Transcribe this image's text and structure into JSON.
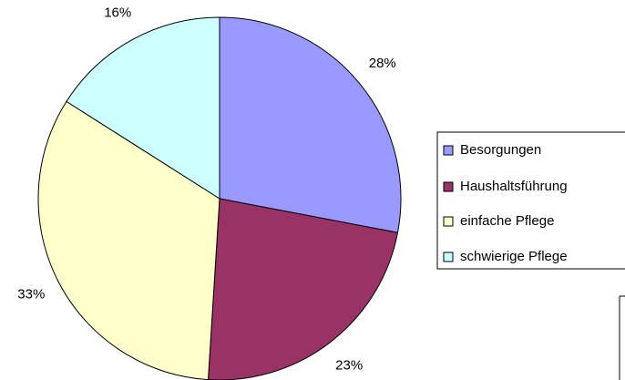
{
  "chart_data": {
    "type": "pie",
    "categories": [
      "Besorgungen",
      "Haushaltsführung",
      "einfache Pflege",
      "schwierige Pflege"
    ],
    "values": [
      28,
      23,
      33,
      16
    ],
    "value_labels": [
      "28%",
      "23%",
      "33%",
      "16%"
    ],
    "colors": [
      "#9999ff",
      "#993366",
      "#ffffcc",
      "#ccffff"
    ],
    "legend": "right"
  }
}
